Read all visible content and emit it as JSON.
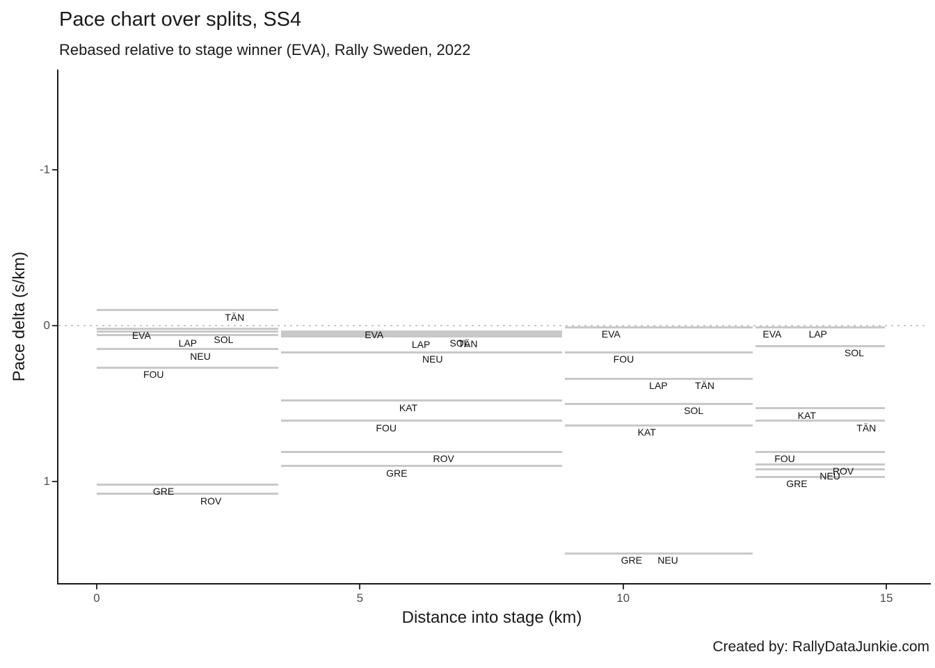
{
  "footer": "Created by: RallyDataJunkie.com",
  "chart_data": {
    "type": "line",
    "title": "Pace chart over splits, SS4",
    "subtitle": "Rebased relative to stage winner (EVA), Rally Sweden, 2022",
    "xlabel": "Distance into stage (km)",
    "ylabel": "Pace delta (s/km)",
    "x_ticks": [
      0,
      5,
      10,
      15
    ],
    "y_ticks": [
      -1,
      0,
      1
    ],
    "xlim": [
      -0.73,
      15.8
    ],
    "ylim": [
      -1.64,
      1.66
    ],
    "y_axis_reversed": true,
    "grid": false,
    "zero_reference_line": {
      "value": 0,
      "style": "dotted",
      "color": "#c9c9c9"
    },
    "line_color": "#c8c8c8",
    "label_color": "#111111",
    "splits": [
      {
        "km_start": 0,
        "km_end": 3.45,
        "entries": [
          {
            "driver": "TÄN",
            "value": -0.1,
            "label_km": 2.62
          },
          {
            "driver": "EVA",
            "value": 0.02,
            "label_km": 0.85
          },
          {
            "driver": "LAP",
            "value": 0.04,
            "label_km": 1.73,
            "dy": 6
          },
          {
            "driver": "SOL",
            "value": 0.06,
            "label_km": 2.41,
            "dy": -3
          },
          {
            "driver": "NEU",
            "value": 0.15,
            "label_km": 1.97
          },
          {
            "driver": "FOU",
            "value": 0.27,
            "label_km": 1.08
          },
          {
            "driver": "GRE",
            "value": 1.02,
            "label_km": 1.27
          },
          {
            "driver": "ROV",
            "value": 1.08,
            "label_km": 2.17
          }
        ]
      },
      {
        "km_start": 3.5,
        "km_end": 8.84,
        "entries": [
          {
            "driver": "EVA",
            "value": 0.04,
            "label_km": 5.27,
            "dy": -6
          },
          {
            "driver": "LAP",
            "value": 0.05,
            "label_km": 6.16,
            "dy": 6
          },
          {
            "driver": "SOL",
            "value": 0.065,
            "label_km": 6.89
          },
          {
            "driver": "TÄN",
            "value": 0.07,
            "label_km": 7.05
          },
          {
            "driver": "NEU",
            "value": 0.17,
            "label_km": 6.38
          },
          {
            "driver": "KAT",
            "value": 0.48,
            "label_km": 5.92
          },
          {
            "driver": "FOU",
            "value": 0.61,
            "label_km": 5.5
          },
          {
            "driver": "ROV",
            "value": 0.81,
            "label_km": 6.59
          },
          {
            "driver": "GRE",
            "value": 0.9,
            "label_km": 5.7
          }
        ]
      },
      {
        "km_start": 8.9,
        "km_end": 12.46,
        "entries": [
          {
            "driver": "EVA",
            "value": 0.01,
            "label_km": 9.77
          },
          {
            "driver": "FOU",
            "value": 0.17,
            "label_km": 10.01
          },
          {
            "driver": "LAP",
            "value": 0.34,
            "label_km": 10.67
          },
          {
            "driver": "TÄN",
            "value": 0.34,
            "label_km": 11.55
          },
          {
            "driver": "SOL",
            "value": 0.5,
            "label_km": 11.34
          },
          {
            "driver": "KAT",
            "value": 0.64,
            "label_km": 10.45
          },
          {
            "driver": "GRE",
            "value": 1.46,
            "label_km": 10.16
          },
          {
            "driver": "NEU",
            "value": 1.46,
            "label_km": 10.85
          }
        ]
      },
      {
        "km_start": 12.52,
        "km_end": 14.97,
        "entries": [
          {
            "driver": "EVA",
            "value": 0.01,
            "label_km": 12.83
          },
          {
            "driver": "LAP",
            "value": 0.01,
            "label_km": 13.7
          },
          {
            "driver": "SOL",
            "value": 0.13,
            "label_km": 14.39
          },
          {
            "driver": "KAT",
            "value": 0.53,
            "label_km": 13.49
          },
          {
            "driver": "TÄN",
            "value": 0.61,
            "label_km": 14.62
          },
          {
            "driver": "FOU",
            "value": 0.81,
            "label_km": 13.07
          },
          {
            "driver": "ROV",
            "value": 0.89,
            "label_km": 14.18
          },
          {
            "driver": "NEU",
            "value": 0.92,
            "label_km": 13.93
          },
          {
            "driver": "GRE",
            "value": 0.97,
            "label_km": 13.3
          }
        ]
      }
    ]
  }
}
